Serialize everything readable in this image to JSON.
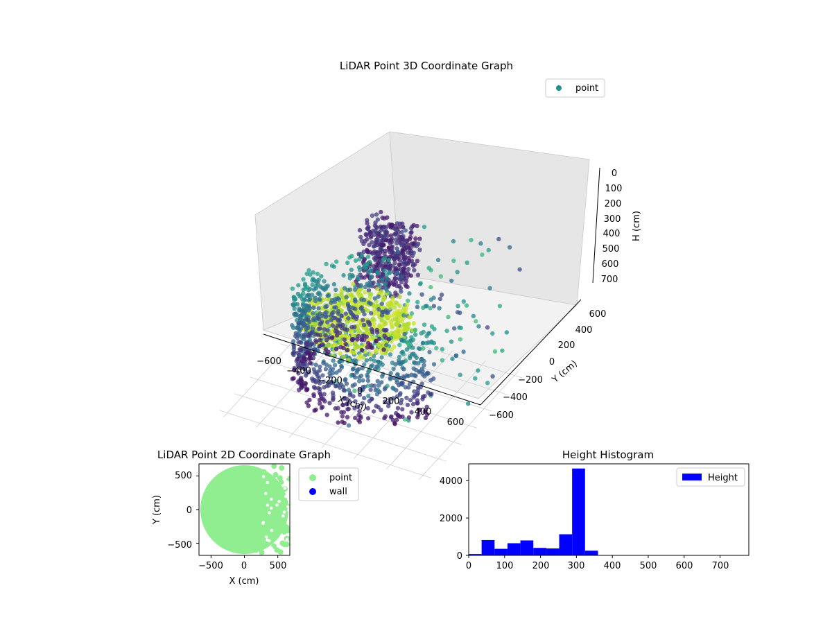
{
  "chart_data": [
    {
      "type": "scatter",
      "projection": "3d",
      "title": "LiDAR Point 3D Coordinate Graph",
      "xlabel": "X (cm)",
      "ylabel": "Y (cm)",
      "zlabel": "H (cm)",
      "xticks": [
        "−600",
        "−400",
        "−200",
        "0",
        "200",
        "400",
        "600"
      ],
      "yticks": [
        "−600",
        "−400",
        "−200",
        "0",
        "200",
        "400",
        "600"
      ],
      "zticks": [
        "0",
        "100",
        "200",
        "300",
        "400",
        "500",
        "600",
        "700"
      ],
      "xlim": [
        -650,
        650
      ],
      "ylim": [
        -650,
        650
      ],
      "zlim": [
        0,
        750
      ],
      "z_inverted": true,
      "legend": {
        "position": "upper-right",
        "entries": [
          {
            "label": "point",
            "color": "#21918c"
          }
        ]
      },
      "colormap": "viridis",
      "grid": true,
      "series": [
        {
          "name": "point",
          "shape": "ring",
          "radius": 420,
          "arc_deg": [
            100,
            350
          ],
          "h_range": [
            320,
            720
          ]
        },
        {
          "name": "point",
          "shape": "cluster",
          "center": [
            100,
            20
          ],
          "spread": 140,
          "h_range": [
            0,
            250
          ]
        },
        {
          "name": "point",
          "shape": "scattered",
          "x_range": [
            0,
            650
          ],
          "y_range": [
            -650,
            650
          ],
          "h_range": [
            150,
            650
          ]
        }
      ]
    },
    {
      "type": "scatter",
      "title": "LiDAR Point 2D Coordinate Graph",
      "xlabel": "X (cm)",
      "ylabel": "Y (cm)",
      "xticks": [
        "−500",
        "0",
        "500"
      ],
      "yticks": [
        "−500",
        "0",
        "500"
      ],
      "xlim": [
        -680,
        680
      ],
      "ylim": [
        -680,
        680
      ],
      "legend": {
        "position": "outside-right",
        "entries": [
          {
            "label": "point",
            "color": "#90ee90"
          },
          {
            "label": "wall",
            "color": "#0000ff"
          }
        ]
      },
      "series": [
        {
          "name": "point",
          "color": "#90ee90",
          "shape": "disc",
          "center": [
            0,
            0
          ],
          "radius": 660
        },
        {
          "name": "wall",
          "color": "#0000ff",
          "points": []
        }
      ]
    },
    {
      "type": "bar",
      "subtype": "histogram",
      "title": "Height Histogram",
      "xlabel": "",
      "ylabel": "",
      "xticks": [
        "0",
        "100",
        "200",
        "300",
        "400",
        "500",
        "600",
        "700"
      ],
      "yticks": [
        "0",
        "2000",
        "4000"
      ],
      "xlim": [
        0,
        780
      ],
      "ylim": [
        0,
        4900
      ],
      "color": "#0000ff",
      "legend": {
        "position": "upper-right",
        "entries": [
          {
            "label": "Height",
            "color": "#0000ff"
          }
        ]
      },
      "bin_edges": [
        0,
        36,
        72,
        108,
        144,
        180,
        216,
        252,
        288,
        324,
        360
      ],
      "values": [
        70,
        820,
        350,
        650,
        800,
        400,
        370,
        1130,
        4650,
        250
      ]
    }
  ]
}
